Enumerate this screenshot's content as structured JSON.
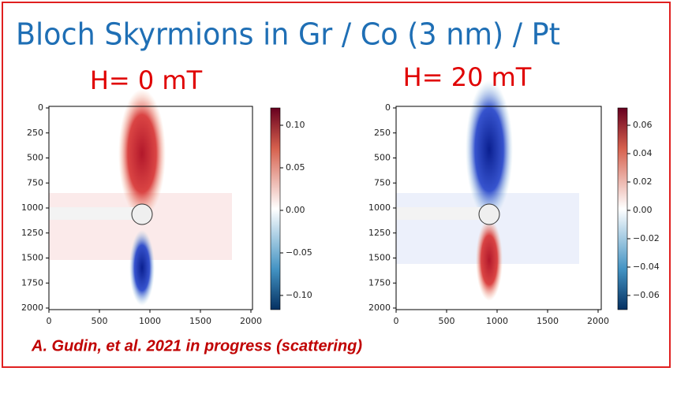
{
  "header": {
    "title": "Bloch Skyrmions in Gr / Co (3 nm) / Pt"
  },
  "panels": [
    {
      "label": "H= 0 mT",
      "yticks": [
        "0",
        "250",
        "500",
        "750",
        "1000",
        "1250",
        "1500",
        "1750",
        "2000"
      ],
      "xticks": [
        "0",
        "500",
        "1000",
        "1500",
        "2000"
      ],
      "colorbar": [
        "0.10",
        "0.05",
        "0.00",
        "−0.05",
        "−0.10"
      ]
    },
    {
      "label": "H= 20 mT",
      "yticks": [
        "0",
        "250",
        "500",
        "750",
        "1000",
        "1250",
        "1500",
        "1750",
        "2000"
      ],
      "xticks": [
        "0",
        "500",
        "1000",
        "1500",
        "2000"
      ],
      "colorbar": [
        "0.06",
        "0.04",
        "0.02",
        "0.00",
        "−0.02",
        "−0.04",
        "−0.06"
      ]
    }
  ],
  "citation": "A. Gudin, et al. 2021 in progress (scattering)"
}
